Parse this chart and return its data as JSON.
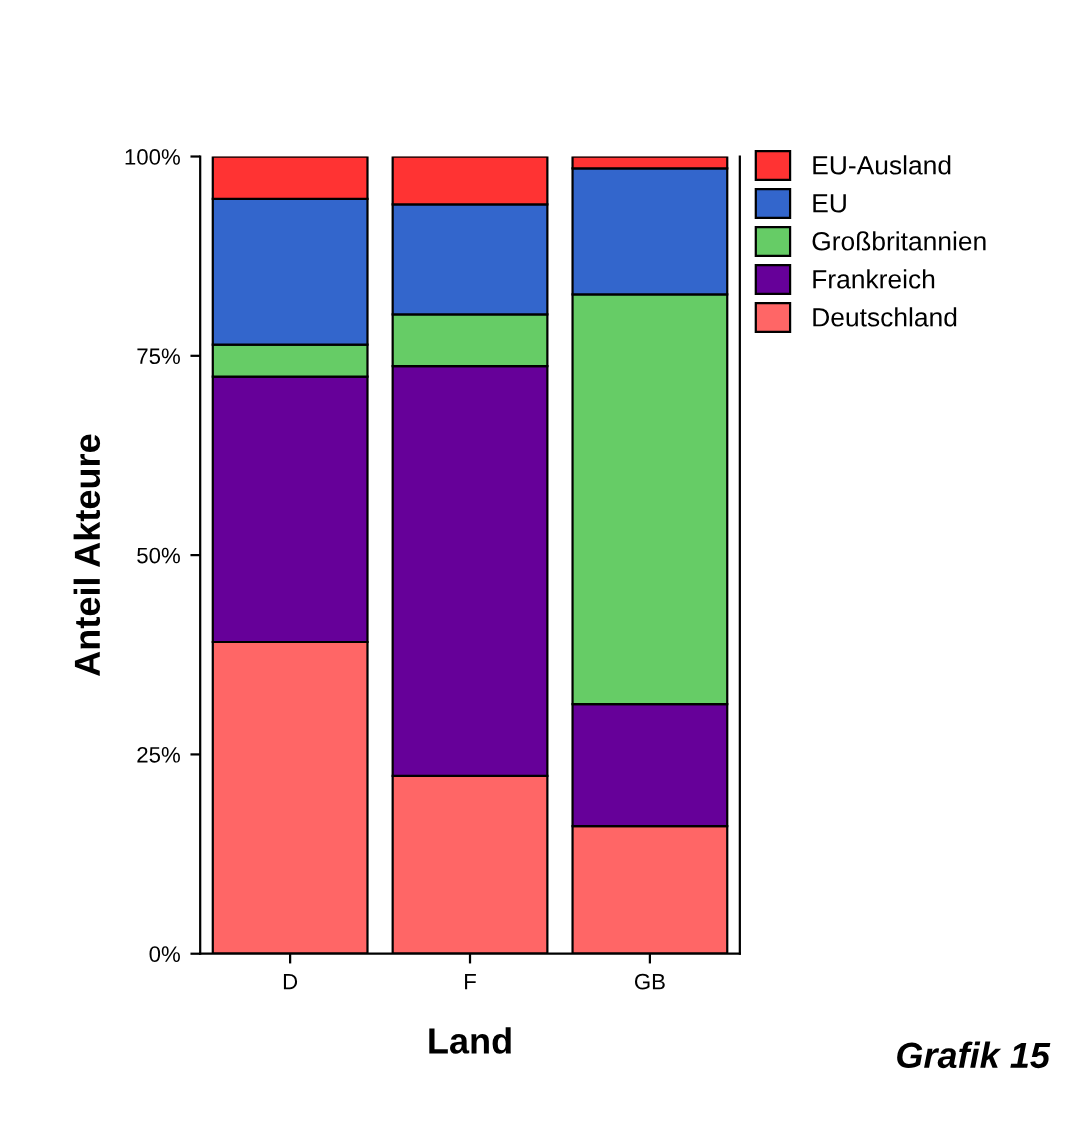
{
  "chart_data": {
    "type": "bar",
    "stacked": true,
    "xlabel": "Land",
    "ylabel": "Anteil Akteure",
    "categories": [
      "D",
      "F",
      "GB"
    ],
    "series": [
      {
        "name": "Deutschland",
        "color": "#ff6666",
        "values": [
          39.1,
          22.3,
          16.0
        ]
      },
      {
        "name": "Frankreich",
        "color": "#660099",
        "values": [
          33.3,
          51.4,
          15.3
        ]
      },
      {
        "name": "Großbritannien",
        "color": "#66cc66",
        "values": [
          4.0,
          6.5,
          51.4
        ]
      },
      {
        "name": "EU",
        "color": "#3366cc",
        "values": [
          18.3,
          13.8,
          15.8
        ]
      },
      {
        "name": "EU-Ausland",
        "color": "#ff3333",
        "values": [
          5.3,
          6.0,
          1.5
        ]
      }
    ],
    "ylim": [
      0,
      100
    ],
    "yticks": [
      {
        "value": 0,
        "label": "0%"
      },
      {
        "value": 25,
        "label": "25%"
      },
      {
        "value": 50,
        "label": "50%"
      },
      {
        "value": 75,
        "label": "75%"
      },
      {
        "value": 100,
        "label": "100%"
      }
    ],
    "legend": "top right",
    "grid": false,
    "annotations": [
      "Grafik 15"
    ]
  }
}
